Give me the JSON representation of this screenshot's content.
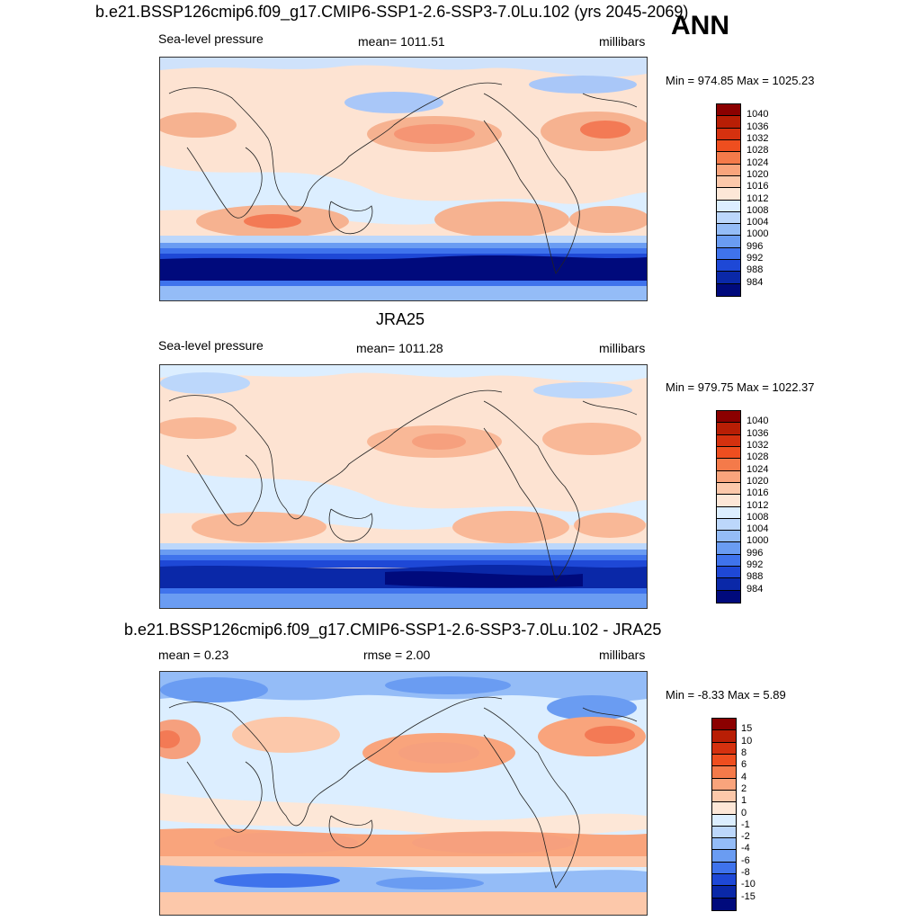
{
  "season": "ANN",
  "panels": [
    {
      "title": "b.e21.BSSP126cmip6.f09_g17.CMIP6-SSP1-2.6-SSP3-7.0Lu.102 (yrs 2045-2069)",
      "left_label": "Sea-level pressure",
      "center_label": "mean= 1011.51",
      "right_label": "millibars",
      "minmax": "Min = 974.85 Max = 1025.23",
      "colorbar": {
        "labels": [
          "1040",
          "1036",
          "1032",
          "1028",
          "1024",
          "1020",
          "1016",
          "1012",
          "1008",
          "1004",
          "1000",
          "996",
          "992",
          "988",
          "984"
        ],
        "colors": [
          "#8b0000",
          "#b81e05",
          "#d5310f",
          "#ee4e1f",
          "#f47a4a",
          "#f9a47c",
          "#fcc8aa",
          "#fde7d7",
          "#dceeff",
          "#bcd7fb",
          "#94bcf7",
          "#6a9cf2",
          "#3f73ec",
          "#1e48d6",
          "#0a28a8",
          "#000a7c"
        ]
      }
    },
    {
      "title": "JRA25",
      "left_label": "Sea-level pressure",
      "center_label": "mean= 1011.28",
      "right_label": "millibars",
      "minmax": "Min = 979.75 Max = 1022.37",
      "colorbar": {
        "labels": [
          "1040",
          "1036",
          "1032",
          "1028",
          "1024",
          "1020",
          "1016",
          "1012",
          "1008",
          "1004",
          "1000",
          "996",
          "992",
          "988",
          "984"
        ],
        "colors": [
          "#8b0000",
          "#b81e05",
          "#d5310f",
          "#ee4e1f",
          "#f47a4a",
          "#f9a47c",
          "#fcc8aa",
          "#fde7d7",
          "#dceeff",
          "#bcd7fb",
          "#94bcf7",
          "#6a9cf2",
          "#3f73ec",
          "#1e48d6",
          "#0a28a8",
          "#000a7c"
        ]
      }
    },
    {
      "title": "b.e21.BSSP126cmip6.f09_g17.CMIP6-SSP1-2.6-SSP3-7.0Lu.102 - JRA25",
      "left_label": "mean =   0.23",
      "center_label": "rmse =   2.00",
      "right_label": "millibars",
      "minmax": "Min =  -8.33 Max =   5.89",
      "colorbar": {
        "labels": [
          "15",
          "10",
          "8",
          "6",
          "4",
          "2",
          "1",
          "0",
          "-1",
          "-2",
          "-4",
          "-6",
          "-8",
          "-10",
          "-15"
        ],
        "colors": [
          "#8b0000",
          "#b81e05",
          "#d5310f",
          "#ee4e1f",
          "#f47a4a",
          "#f9a47c",
          "#fcc8aa",
          "#fde7d7",
          "#dceeff",
          "#bcd7fb",
          "#94bcf7",
          "#6a9cf2",
          "#3f73ec",
          "#1e48d6",
          "#0a28a8",
          "#000a7c"
        ]
      }
    }
  ]
}
